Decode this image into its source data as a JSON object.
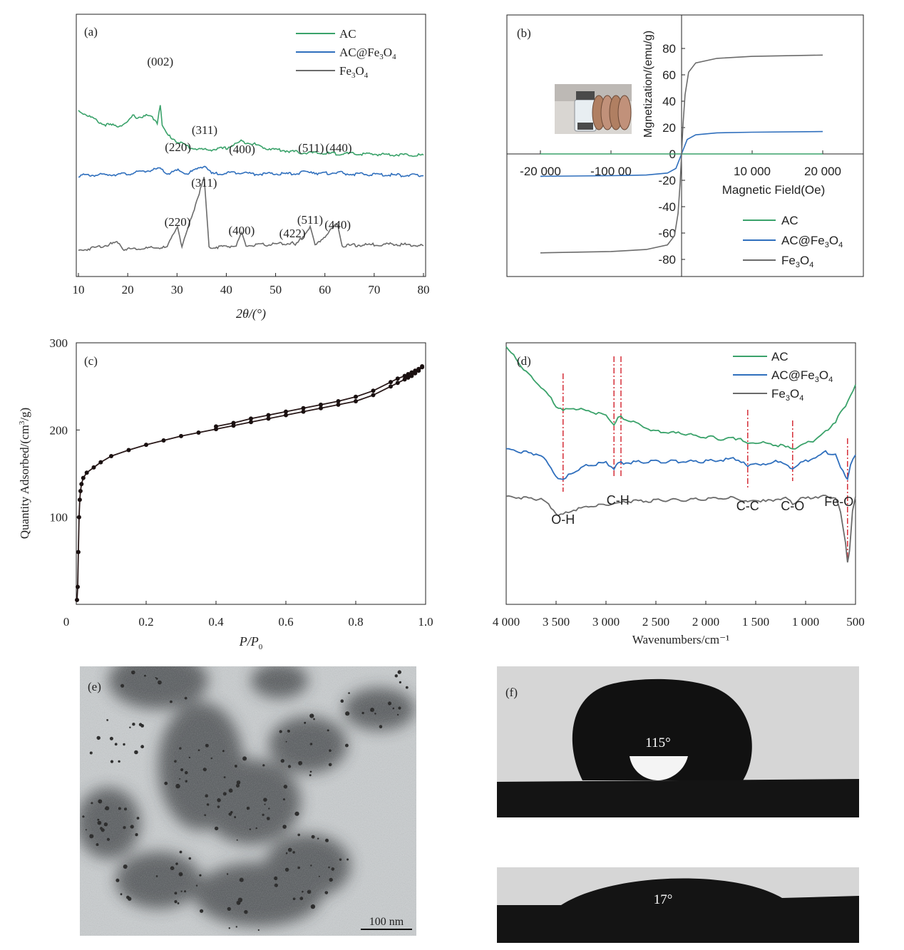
{
  "colors": {
    "AC": "#3aa26a",
    "AC@Fe3O4": "#2f6fbd",
    "Fe3O4": "#6b6b6b",
    "ref_lines": "#d21f2a"
  },
  "chart_data": [
    {
      "id": "a",
      "type": "line",
      "panel_label": "(a)",
      "xlabel": "2θ/(°)",
      "ylabel": "",
      "xlim": [
        10,
        80
      ],
      "xticks": [
        10,
        20,
        30,
        40,
        50,
        60,
        70,
        80
      ],
      "legend": [
        "AC",
        "AC@Fe3O4",
        "Fe3O4"
      ],
      "legend_placement": "top-right",
      "series": [
        {
          "name": "AC",
          "x": [
            10,
            12,
            15,
            18,
            20,
            21,
            22,
            24,
            25,
            26,
            26.6,
            27,
            28,
            30,
            33,
            36,
            40,
            43,
            45,
            48,
            55,
            60,
            70,
            80
          ],
          "y": [
            8.2,
            7.9,
            7.4,
            7.3,
            7.5,
            7.9,
            7.8,
            7.9,
            7.8,
            7.5,
            8.6,
            7.3,
            6.8,
            6.4,
            6.0,
            5.9,
            6.0,
            6.4,
            6.3,
            6.0,
            5.75,
            5.7,
            5.65,
            5.6
          ]
        },
        {
          "name": "AC@Fe3O4",
          "x": [
            10,
            20,
            26.6,
            28,
            30.2,
            32,
            35.6,
            37,
            43.2,
            45,
            53.5,
            57.2,
            59,
            62.8,
            64,
            80
          ],
          "y": [
            4.4,
            4.5,
            4.8,
            4.5,
            4.7,
            4.5,
            5.0,
            4.5,
            4.6,
            4.5,
            4.5,
            4.65,
            4.5,
            4.6,
            4.5,
            4.4
          ]
        },
        {
          "name": "Fe3O4",
          "x": [
            10,
            18.3,
            19,
            28,
            30.1,
            31,
            35.5,
            36.5,
            42,
            43.1,
            44,
            53.4,
            54,
            57,
            58,
            62.6,
            63.5,
            74,
            80
          ],
          "y": [
            0.0,
            0.5,
            0.1,
            0.2,
            1.5,
            0.2,
            4.3,
            0.2,
            0.3,
            1.0,
            0.3,
            0.45,
            0.3,
            1.4,
            0.3,
            1.6,
            0.3,
            0.4,
            0.3
          ]
        }
      ],
      "annotations": [
        {
          "text": "(002)",
          "x": 26.6,
          "series": "AC"
        },
        {
          "text": "(220)",
          "x": 30.2,
          "series": "AC@Fe3O4"
        },
        {
          "text": "(311)",
          "x": 35.6,
          "series": "AC@Fe3O4"
        },
        {
          "text": "(400)",
          "x": 43.2,
          "series": "AC@Fe3O4"
        },
        {
          "text": "(511)",
          "x": 57.2,
          "series": "AC@Fe3O4"
        },
        {
          "text": "(440)",
          "x": 62.8,
          "series": "AC@Fe3O4"
        },
        {
          "text": "(311)",
          "x": 35.5,
          "series": "Fe3O4"
        },
        {
          "text": "(220)",
          "x": 30.1,
          "series": "Fe3O4"
        },
        {
          "text": "(400)",
          "x": 43.1,
          "series": "Fe3O4"
        },
        {
          "text": "(422)",
          "x": 53.4,
          "series": "Fe3O4"
        },
        {
          "text": "(511)",
          "x": 57.0,
          "series": "Fe3O4"
        },
        {
          "text": "(440)",
          "x": 62.6,
          "series": "Fe3O4"
        }
      ]
    },
    {
      "id": "b",
      "type": "line",
      "panel_label": "(b)",
      "xlabel": "Magnetic Field(Oe)",
      "ylabel": "Mgnetization/(emu/g)",
      "xlim": [
        -25000,
        25000
      ],
      "ylim": [
        -90,
        90
      ],
      "xticks": [
        -20000,
        -10000,
        10000,
        20000
      ],
      "xtick_labels": [
        "-20 000",
        "-100 00",
        "10 000",
        "20 000"
      ],
      "yticks": [
        -80,
        -60,
        -40,
        -20,
        0,
        20,
        40,
        60,
        80
      ],
      "legend": [
        "AC",
        "AC@Fe3O4",
        "Fe3O4"
      ],
      "legend_placement": "bottom-right",
      "series": [
        {
          "name": "AC",
          "x": [
            -20000,
            20000
          ],
          "y": [
            0,
            0
          ]
        },
        {
          "name": "AC@Fe3O4",
          "x": [
            -20000,
            -10000,
            -5000,
            -2000,
            -800,
            0,
            800,
            2000,
            5000,
            10000,
            20000
          ],
          "y": [
            -17,
            -16.5,
            -16,
            -14.5,
            -11,
            0,
            11,
            14.5,
            16,
            16.5,
            17
          ]
        },
        {
          "name": "Fe3O4",
          "x": [
            -20000,
            -10000,
            -5000,
            -2000,
            -1000,
            -500,
            -200,
            0,
            200,
            500,
            1000,
            2000,
            5000,
            10000,
            20000
          ],
          "y": [
            -75,
            -74,
            -72.5,
            -69,
            -62,
            -45,
            -22,
            0,
            22,
            45,
            62,
            69,
            72.5,
            74,
            75
          ]
        }
      ]
    },
    {
      "id": "c",
      "type": "line",
      "panel_label": "(c)",
      "xlabel": "P/P0",
      "ylabel": "Quantity Adsorbed/(cm³/g)",
      "xlim": [
        0,
        1.0
      ],
      "ylim": [
        0,
        300
      ],
      "xticks": [
        0,
        0.2,
        0.4,
        0.6,
        0.8,
        1.0
      ],
      "xtick_labels": [
        "0",
        "0.2",
        "0.4",
        "0.6",
        "0.8",
        "1.0"
      ],
      "yticks": [
        100,
        200,
        300
      ],
      "series": [
        {
          "name": "adsorption",
          "x": [
            0.002,
            0.004,
            0.006,
            0.008,
            0.01,
            0.012,
            0.015,
            0.02,
            0.03,
            0.05,
            0.07,
            0.1,
            0.15,
            0.2,
            0.25,
            0.3,
            0.35,
            0.4,
            0.45,
            0.5,
            0.55,
            0.6,
            0.65,
            0.7,
            0.75,
            0.8,
            0.85,
            0.9,
            0.92,
            0.94,
            0.95,
            0.96,
            0.97,
            0.98,
            0.99
          ],
          "y": [
            5,
            20,
            60,
            100,
            120,
            130,
            138,
            145,
            151,
            157,
            163,
            170,
            177,
            183,
            188,
            193,
            197,
            201,
            205,
            209,
            213,
            217,
            221,
            225,
            229,
            233,
            240,
            250,
            254,
            258,
            260,
            262,
            265,
            268,
            272
          ]
        },
        {
          "name": "desorption",
          "x": [
            0.4,
            0.45,
            0.5,
            0.55,
            0.6,
            0.65,
            0.7,
            0.75,
            0.8,
            0.85,
            0.9,
            0.92,
            0.94,
            0.95,
            0.96,
            0.97,
            0.98,
            0.99
          ],
          "y": [
            204,
            208,
            213,
            217,
            221,
            225,
            229,
            233,
            238,
            245,
            255,
            259,
            262,
            264,
            266,
            268,
            270,
            273
          ]
        }
      ]
    },
    {
      "id": "d",
      "type": "line",
      "panel_label": "(d)",
      "xlabel": "Wavenumbers/cm⁻¹",
      "ylabel": "",
      "xlim": [
        4000,
        500
      ],
      "x_reversed": true,
      "xticks": [
        4000,
        3500,
        3000,
        2500,
        2000,
        1500,
        1000,
        500
      ],
      "xtick_labels": [
        "4 000",
        "3 500",
        "3 000",
        "2 500",
        "2 000",
        "1 500",
        "1 000",
        "500"
      ],
      "legend": [
        "AC",
        "AC@Fe3O4",
        "Fe3O4"
      ],
      "legend_placement": "top-right",
      "reference_lines": [
        3430,
        2920,
        2850,
        1580,
        1130,
        580
      ],
      "series": [
        {
          "name": "AC",
          "x": [
            4000,
            3900,
            3800,
            3700,
            3600,
            3500,
            3430,
            3350,
            3200,
            3000,
            2920,
            2880,
            2850,
            2700,
            2500,
            2200,
            2000,
            1800,
            1650,
            1580,
            1500,
            1400,
            1300,
            1200,
            1130,
            1050,
            900,
            800,
            700,
            600,
            500
          ],
          "y": [
            9.5,
            9.1,
            8.6,
            8.2,
            7.8,
            7.3,
            7.1,
            7.2,
            7.1,
            6.9,
            6.6,
            6.8,
            6.85,
            6.6,
            6.3,
            6.2,
            6.1,
            6.0,
            6.05,
            5.8,
            5.9,
            5.85,
            5.8,
            5.7,
            5.65,
            5.75,
            6.0,
            6.3,
            6.7,
            7.3,
            8.1
          ]
        },
        {
          "name": "AC@Fe3O4",
          "x": [
            4000,
            3800,
            3650,
            3550,
            3480,
            3430,
            3350,
            3200,
            3000,
            2920,
            2880,
            2850,
            2500,
            2000,
            1700,
            1620,
            1580,
            1500,
            1400,
            1300,
            1200,
            1130,
            1050,
            900,
            800,
            700,
            650,
            600,
            580,
            550,
            500
          ],
          "y": [
            5.6,
            5.5,
            5.4,
            4.9,
            4.5,
            4.4,
            4.7,
            5.0,
            5.1,
            4.9,
            5.05,
            5.1,
            5.15,
            5.15,
            5.25,
            5.1,
            4.95,
            5.1,
            5.0,
            5.2,
            5.0,
            4.9,
            5.1,
            5.3,
            5.5,
            5.4,
            4.9,
            4.6,
            4.5,
            5.0,
            5.4
          ]
        },
        {
          "name": "Fe3O4",
          "x": [
            4000,
            3800,
            3650,
            3550,
            3480,
            3430,
            3350,
            3200,
            3000,
            2800,
            2500,
            2000,
            1700,
            1620,
            1580,
            1500,
            1400,
            1300,
            1200,
            1130,
            1050,
            900,
            800,
            700,
            650,
            600,
            580,
            560,
            530,
            500
          ],
          "y": [
            3.8,
            3.75,
            3.7,
            3.4,
            3.1,
            3.1,
            3.25,
            3.4,
            3.5,
            3.6,
            3.65,
            3.7,
            3.75,
            3.65,
            3.55,
            3.7,
            3.6,
            3.7,
            3.75,
            3.55,
            3.7,
            3.8,
            3.8,
            3.75,
            3.2,
            2.0,
            1.3,
            1.7,
            3.2,
            3.8
          ]
        }
      ],
      "annotations": [
        {
          "text": "O-H",
          "x": 3430
        },
        {
          "text": "C-H",
          "x": 2880
        },
        {
          "text": "C-C",
          "x": 1580
        },
        {
          "text": "C-O",
          "x": 1130
        },
        {
          "text": "Fe-O",
          "x": 580
        }
      ]
    }
  ],
  "panels": {
    "e": {
      "label": "(e)",
      "scalebar": "100 nm"
    },
    "f": {
      "label": "(f)",
      "angle_top": "115°",
      "angle_bottom": "17°"
    }
  }
}
